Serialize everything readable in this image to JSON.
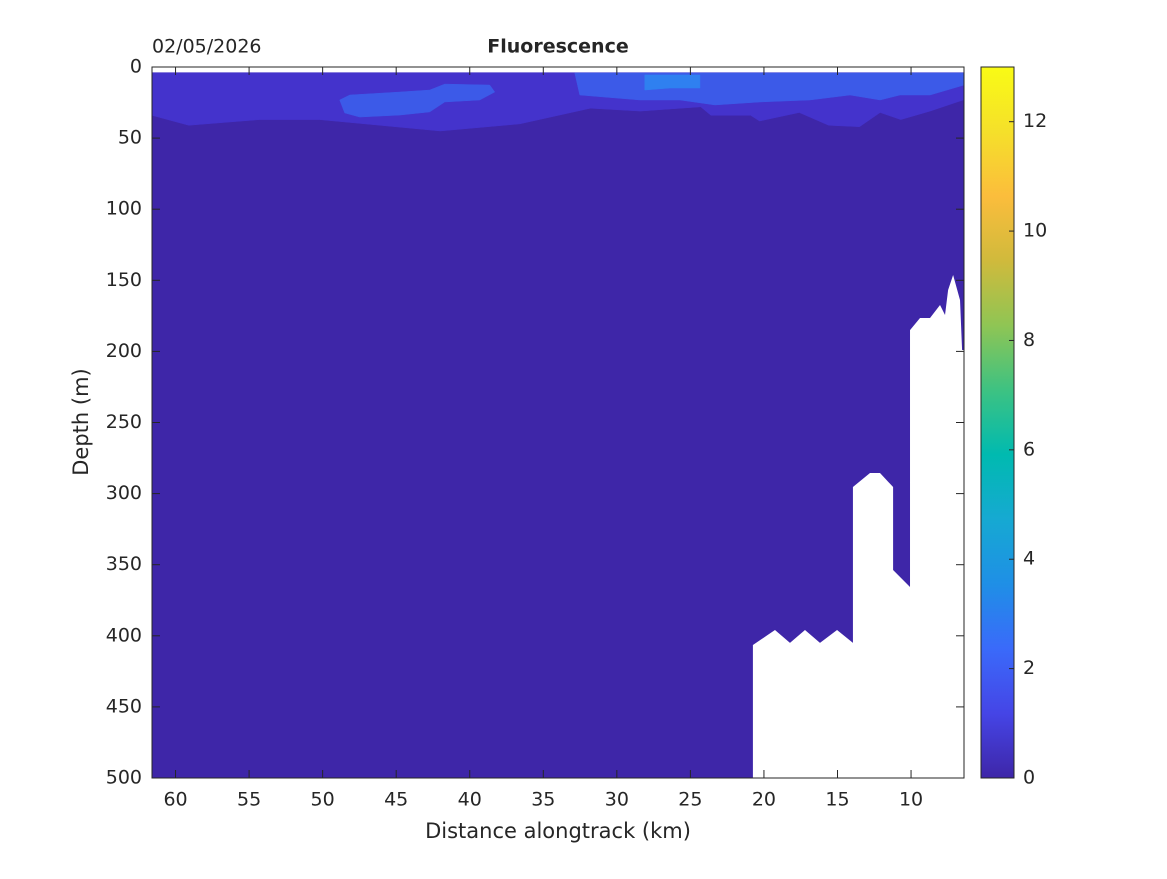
{
  "chart_data": {
    "type": "contour",
    "title": "Fluorescence",
    "annotation": "02/05/2026",
    "xlabel": "Distance alongtrack (km)",
    "ylabel": "Depth (m)",
    "xlim": [
      61.6,
      6.4
    ],
    "ylim": [
      0,
      500
    ],
    "xticks": [
      60,
      55,
      50,
      45,
      40,
      35,
      30,
      25,
      20,
      15,
      10
    ],
    "yticks": [
      0,
      50,
      100,
      150,
      200,
      250,
      300,
      350,
      400,
      450,
      500
    ],
    "x_reversed": true,
    "y_reversed": true,
    "regions": [
      {
        "level": 0,
        "color": "#3e26a8",
        "x": [
          61.6,
          6.4,
          6.4,
          61.6
        ],
        "y": [
          4,
          4,
          500,
          500
        ]
      },
      {
        "level": 1,
        "color": "#4433cc",
        "x": [
          61.6,
          6.4,
          6.4,
          8.7,
          10.7,
          12.1,
          13.5,
          15.6,
          17.6,
          20.3,
          20.9,
          23.6,
          24.3,
          28.4,
          31.8,
          36.6,
          42,
          46.1,
          50.2,
          54.3,
          59.1,
          61.6
        ],
        "y": [
          4,
          4,
          23,
          31,
          37,
          32,
          42,
          41,
          32,
          38,
          34,
          34,
          28,
          31,
          29,
          40,
          45,
          41,
          37,
          37,
          41,
          34
        ]
      },
      {
        "level": 2,
        "color": "#3c5ae8",
        "x": [
          48.84,
          48.16,
          44.76,
          42.72,
          41.7,
          38.64,
          38.3,
          39.32,
          41.7,
          42.72,
          44.76,
          47.48,
          48.5
        ],
        "y": [
          23.2,
          19.7,
          17.6,
          16.2,
          12,
          12.7,
          17.6,
          23.2,
          24.6,
          31.6,
          33.8,
          35.2,
          32.3
        ]
      },
      {
        "level": 2,
        "color": "#3c5ae8",
        "x": [
          32.86,
          6.4,
          6.4,
          8.71,
          10.75,
          12.1,
          14.15,
          16.87,
          20.27,
          23.33,
          25.71,
          28.44,
          32.52
        ],
        "y": [
          4.2,
          4.2,
          12.7,
          19.7,
          19.7,
          23.2,
          19.7,
          23.2,
          24.6,
          26.7,
          23.2,
          23.2,
          19.7
        ]
      },
      {
        "level": 3,
        "color": "#2f80f0",
        "x": [
          28.1,
          24.35,
          24.35,
          26.4,
          28.1
        ],
        "y": [
          5.6,
          5.6,
          14.8,
          14.8,
          16.2
        ]
      }
    ],
    "mask": {
      "x": [
        20.75,
        20.75,
        19.25,
        18.23,
        17.21,
        16.19,
        15.03,
        13.95,
        13.95,
        12.79,
        12.11,
        11.22,
        11.22,
        10.07,
        10.07,
        9.39,
        8.71,
        8.03,
        7.69,
        7.48,
        7.14,
        6.67,
        6.53,
        6.4,
        6.4
      ],
      "y": [
        500,
        406.5,
        395.9,
        405,
        395.9,
        405,
        395.9,
        405,
        295.4,
        285.5,
        285.5,
        295.4,
        353.7,
        365.7,
        185,
        176.5,
        176.5,
        167.4,
        174.4,
        156.8,
        146.3,
        163.9,
        199,
        199,
        500
      ]
    },
    "colorbar": {
      "lim": [
        0,
        13
      ],
      "ticks": [
        0,
        2,
        4,
        6,
        8,
        10,
        12
      ],
      "colors": [
        "#3e26a8",
        "#4545e6",
        "#3a6afa",
        "#1f8fe6",
        "#16a9d2",
        "#00bab0",
        "#3dc282",
        "#8fc554",
        "#d0ba3c",
        "#fbbd3c",
        "#f5e02a",
        "#f9fb15"
      ]
    }
  }
}
